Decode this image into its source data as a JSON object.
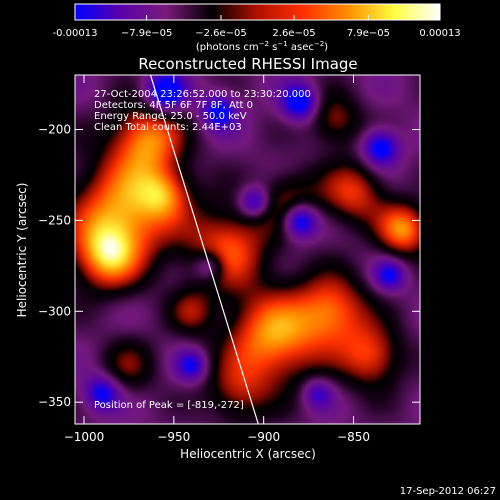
{
  "chart_data": {
    "type": "heatmap",
    "title": "Reconstructed RHESSI Image",
    "xlabel": "Heliocentric X (arcsec)",
    "ylabel": "Heliocentric Y (arcsec)",
    "xlim": [
      -1005,
      -813
    ],
    "ylim": [
      -362,
      -170
    ],
    "x_ticks": [
      -1000,
      -950,
      -900,
      -850
    ],
    "x_tick_labels": [
      "−1000",
      "−950",
      "−900",
      "−850"
    ],
    "y_ticks": [
      -200,
      -250,
      -300,
      -350
    ],
    "y_tick_labels": [
      "−200",
      "−250",
      "−300",
      "−350"
    ],
    "colorbar": {
      "range": [
        -0.00013,
        0.00013
      ],
      "tick_values": [
        -0.00013,
        -7.9e-05,
        -2.6e-05,
        2.6e-05,
        7.9e-05,
        0.00013
      ],
      "tick_labels": [
        "-0.00013",
        "−7.9e−05",
        "−2.6e−05",
        "2.6e−05",
        "7.9e−05",
        "0.00013"
      ],
      "unit_prefix": "(photons cm",
      "unit_exp1": "−2",
      "unit_mid": " s",
      "unit_exp2": "−1",
      "unit_mid2": " asec",
      "unit_exp3": "−2",
      "unit_suffix": ")",
      "colors": [
        "#0000ff",
        "#5a00aa",
        "#7a1a7a",
        "#000000",
        "#b01000",
        "#ff3000",
        "#ff9000",
        "#ffff40",
        "#ffffff"
      ]
    },
    "annotations": [
      "27-Oct-2004 23:26:52.000 to 23:30:20.000",
      "Detectors: 4F 5F 6F 7F 8F, Att 0",
      "Energy Range: 25.0 - 50.0 keV",
      "Clean   Total counts: 2.44E+03"
    ],
    "peak_label": "Position of Peak = [-819,-272]",
    "peak_position": [
      -819,
      -272
    ],
    "limb_line": [
      [
        -963,
        -170
      ],
      [
        -903,
        -362
      ]
    ],
    "blobs": [
      {
        "x": -978,
        "y": -245,
        "sigma": 20,
        "amp": 1.0
      },
      {
        "x": -965,
        "y": -205,
        "sigma": 14,
        "amp": 0.9
      },
      {
        "x": -988,
        "y": -270,
        "sigma": 13,
        "amp": 0.85
      },
      {
        "x": -955,
        "y": -235,
        "sigma": 10,
        "amp": 0.6
      },
      {
        "x": -920,
        "y": -265,
        "sigma": 16,
        "amp": 0.8
      },
      {
        "x": -885,
        "y": -240,
        "sigma": 12,
        "amp": 0.55
      },
      {
        "x": -850,
        "y": -235,
        "sigma": 12,
        "amp": 0.7
      },
      {
        "x": -822,
        "y": -255,
        "sigma": 10,
        "amp": 0.95
      },
      {
        "x": -895,
        "y": -315,
        "sigma": 18,
        "amp": 1.0
      },
      {
        "x": -862,
        "y": -300,
        "sigma": 14,
        "amp": 0.85
      },
      {
        "x": -840,
        "y": -325,
        "sigma": 12,
        "amp": 0.75
      },
      {
        "x": -860,
        "y": -195,
        "sigma": 10,
        "amp": 0.55
      },
      {
        "x": -915,
        "y": -345,
        "sigma": 12,
        "amp": 0.5
      },
      {
        "x": -975,
        "y": -330,
        "sigma": 11,
        "amp": 0.4
      },
      {
        "x": -940,
        "y": -300,
        "sigma": 9,
        "amp": 0.45
      },
      {
        "x": -880,
        "y": -185,
        "sigma": 7,
        "amp": -0.8
      },
      {
        "x": -955,
        "y": -180,
        "sigma": 8,
        "amp": -0.9
      },
      {
        "x": -925,
        "y": -190,
        "sigma": 7,
        "amp": -0.7
      },
      {
        "x": -880,
        "y": -250,
        "sigma": 7,
        "amp": -1.0
      },
      {
        "x": -905,
        "y": -240,
        "sigma": 6,
        "amp": -0.7
      },
      {
        "x": -835,
        "y": -210,
        "sigma": 7,
        "amp": -0.8
      },
      {
        "x": -990,
        "y": -345,
        "sigma": 7,
        "amp": -0.7
      },
      {
        "x": -940,
        "y": -330,
        "sigma": 6,
        "amp": -0.6
      },
      {
        "x": -930,
        "y": -275,
        "sigma": 6,
        "amp": -0.6
      },
      {
        "x": -830,
        "y": -280,
        "sigma": 6,
        "amp": -0.6
      },
      {
        "x": -870,
        "y": -345,
        "sigma": 6,
        "amp": -0.5
      }
    ]
  },
  "footer": {
    "date_stamp": "17-Sep-2012 06:27"
  }
}
